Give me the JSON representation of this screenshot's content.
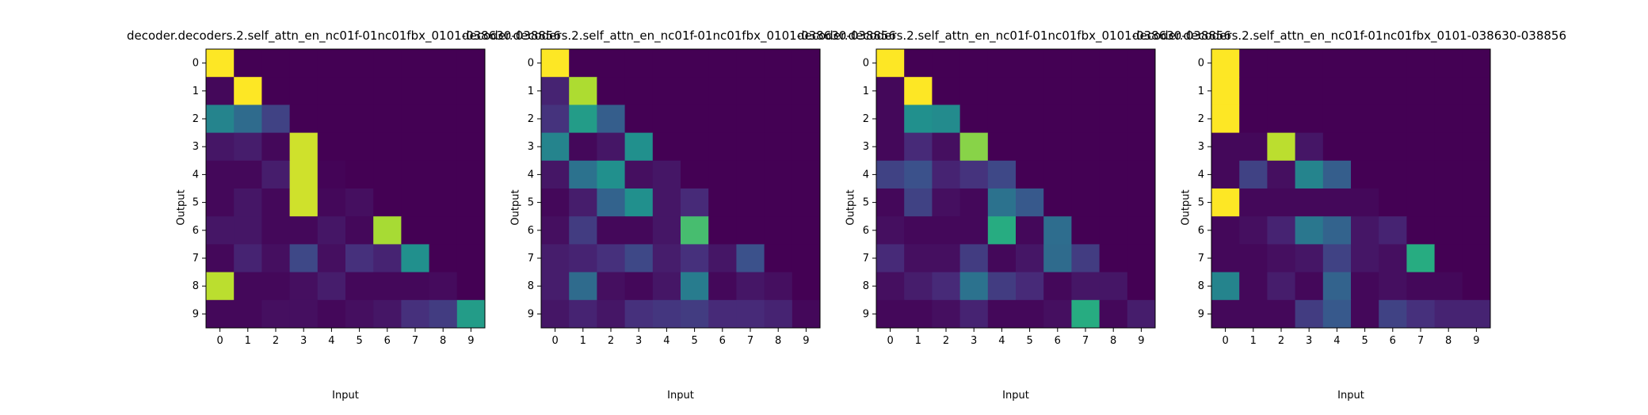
{
  "chart_data": [
    {
      "type": "heatmap",
      "title": "decoder.decoders.2.self_attn_en_nc01f-01nc01fbx_0101-038630-038856",
      "xlabel": "Input",
      "ylabel": "Output",
      "x_ticks": [
        "0",
        "1",
        "2",
        "3",
        "4",
        "5",
        "6",
        "7",
        "8",
        "9"
      ],
      "y_ticks": [
        "0",
        "1",
        "2",
        "3",
        "4",
        "5",
        "6",
        "7",
        "8",
        "9"
      ],
      "colormap": "viridis",
      "value_range": [
        0,
        1
      ],
      "values": [
        [
          1.0,
          0,
          0,
          0,
          0,
          0,
          0,
          0,
          0,
          0
        ],
        [
          0.02,
          1.0,
          0,
          0,
          0,
          0,
          0,
          0,
          0,
          0
        ],
        [
          0.45,
          0.35,
          0.2,
          0,
          0,
          0,
          0,
          0,
          0,
          0
        ],
        [
          0.06,
          0.08,
          0.02,
          0.93,
          0,
          0,
          0,
          0,
          0,
          0
        ],
        [
          0.02,
          0.02,
          0.08,
          0.93,
          0.01,
          0,
          0,
          0,
          0,
          0
        ],
        [
          0.02,
          0.06,
          0.02,
          0.93,
          0.02,
          0.04,
          0,
          0,
          0,
          0
        ],
        [
          0.06,
          0.06,
          0.02,
          0.02,
          0.06,
          0.02,
          0.87,
          0,
          0,
          0
        ],
        [
          0.02,
          0.1,
          0.04,
          0.22,
          0.04,
          0.14,
          0.1,
          0.5,
          0,
          0
        ],
        [
          0.9,
          0.02,
          0.02,
          0.04,
          0.08,
          0.02,
          0.02,
          0.02,
          0.03,
          0
        ],
        [
          0.02,
          0.02,
          0.04,
          0.04,
          0.02,
          0.04,
          0.06,
          0.14,
          0.18,
          0.55
        ]
      ]
    },
    {
      "type": "heatmap",
      "title": "decoder.decoders.2.self_attn_en_nc01f-01nc01fbx_0101-038630-038856",
      "xlabel": "Input",
      "ylabel": "Output",
      "x_ticks": [
        "0",
        "1",
        "2",
        "3",
        "4",
        "5",
        "6",
        "7",
        "8",
        "9"
      ],
      "y_ticks": [
        "0",
        "1",
        "2",
        "3",
        "4",
        "5",
        "6",
        "7",
        "8",
        "9"
      ],
      "colormap": "viridis",
      "value_range": [
        0,
        1
      ],
      "values": [
        [
          1.0,
          0,
          0,
          0,
          0,
          0,
          0,
          0,
          0,
          0
        ],
        [
          0.1,
          0.88,
          0,
          0,
          0,
          0,
          0,
          0,
          0,
          0
        ],
        [
          0.15,
          0.55,
          0.3,
          0,
          0,
          0,
          0,
          0,
          0,
          0
        ],
        [
          0.45,
          0.02,
          0.06,
          0.5,
          0,
          0,
          0,
          0,
          0,
          0
        ],
        [
          0.06,
          0.38,
          0.5,
          0.04,
          0.06,
          0,
          0,
          0,
          0,
          0
        ],
        [
          0.02,
          0.08,
          0.32,
          0.5,
          0.06,
          0.12,
          0,
          0,
          0,
          0
        ],
        [
          0.04,
          0.18,
          0.02,
          0.02,
          0.06,
          0.7,
          0,
          0,
          0,
          0
        ],
        [
          0.08,
          0.1,
          0.14,
          0.22,
          0.08,
          0.14,
          0.06,
          0.25,
          0,
          0
        ],
        [
          0.08,
          0.35,
          0.04,
          0.02,
          0.06,
          0.42,
          0.02,
          0.06,
          0.04,
          0
        ],
        [
          0.06,
          0.1,
          0.06,
          0.14,
          0.16,
          0.18,
          0.12,
          0.12,
          0.1,
          0.02
        ]
      ]
    },
    {
      "type": "heatmap",
      "title": "decoder.decoders.2.self_attn_en_nc01f-01nc01fbx_0101-038630-038856",
      "xlabel": "Input",
      "ylabel": "Output",
      "x_ticks": [
        "0",
        "1",
        "2",
        "3",
        "4",
        "5",
        "6",
        "7",
        "8",
        "9"
      ],
      "y_ticks": [
        "0",
        "1",
        "2",
        "3",
        "4",
        "5",
        "6",
        "7",
        "8",
        "9"
      ],
      "colormap": "viridis",
      "value_range": [
        0,
        1
      ],
      "values": [
        [
          1.0,
          0,
          0,
          0,
          0,
          0,
          0,
          0,
          0,
          0
        ],
        [
          0.02,
          1.0,
          0,
          0,
          0,
          0,
          0,
          0,
          0,
          0
        ],
        [
          0.02,
          0.5,
          0.48,
          0,
          0,
          0,
          0,
          0,
          0,
          0
        ],
        [
          0.02,
          0.12,
          0.04,
          0.82,
          0,
          0,
          0,
          0,
          0,
          0
        ],
        [
          0.2,
          0.25,
          0.1,
          0.15,
          0.22,
          0,
          0,
          0,
          0,
          0
        ],
        [
          0.02,
          0.2,
          0.04,
          0.02,
          0.38,
          0.28,
          0,
          0,
          0,
          0
        ],
        [
          0.04,
          0.02,
          0.02,
          0.02,
          0.62,
          0.02,
          0.36,
          0,
          0,
          0
        ],
        [
          0.12,
          0.04,
          0.04,
          0.18,
          0.02,
          0.06,
          0.35,
          0.18,
          0,
          0
        ],
        [
          0.04,
          0.08,
          0.12,
          0.38,
          0.18,
          0.12,
          0.02,
          0.06,
          0.06,
          0
        ],
        [
          0.02,
          0.02,
          0.04,
          0.1,
          0.02,
          0.02,
          0.04,
          0.62,
          0.02,
          0.08
        ]
      ]
    },
    {
      "type": "heatmap",
      "title": "decoder.decoders.2.self_attn_en_nc01f-01nc01fbx_0101-038630-038856",
      "xlabel": "Input",
      "ylabel": "Output",
      "x_ticks": [
        "0",
        "1",
        "2",
        "3",
        "4",
        "5",
        "6",
        "7",
        "8",
        "9"
      ],
      "y_ticks": [
        "0",
        "1",
        "2",
        "3",
        "4",
        "5",
        "6",
        "7",
        "8",
        "9"
      ],
      "colormap": "viridis",
      "value_range": [
        0,
        1
      ],
      "values": [
        [
          1.0,
          0,
          0,
          0,
          0,
          0,
          0,
          0,
          0,
          0
        ],
        [
          1.0,
          0,
          0,
          0,
          0,
          0,
          0,
          0,
          0,
          0
        ],
        [
          1.0,
          0,
          0,
          0,
          0,
          0,
          0,
          0,
          0,
          0
        ],
        [
          0.02,
          0.02,
          0.9,
          0.06,
          0,
          0,
          0,
          0,
          0,
          0
        ],
        [
          0.02,
          0.2,
          0.04,
          0.45,
          0.3,
          0,
          0,
          0,
          0,
          0
        ],
        [
          1.0,
          0.02,
          0.02,
          0.02,
          0.02,
          0.02,
          0,
          0,
          0,
          0
        ],
        [
          0.02,
          0.04,
          0.1,
          0.4,
          0.32,
          0.06,
          0.1,
          0,
          0,
          0
        ],
        [
          0.02,
          0.02,
          0.04,
          0.06,
          0.2,
          0.06,
          0.04,
          0.62,
          0,
          0
        ],
        [
          0.45,
          0.02,
          0.08,
          0.02,
          0.32,
          0.02,
          0.04,
          0.02,
          0.02,
          0
        ],
        [
          0.02,
          0.02,
          0.02,
          0.18,
          0.28,
          0.02,
          0.2,
          0.14,
          0.1,
          0.1
        ]
      ]
    }
  ]
}
